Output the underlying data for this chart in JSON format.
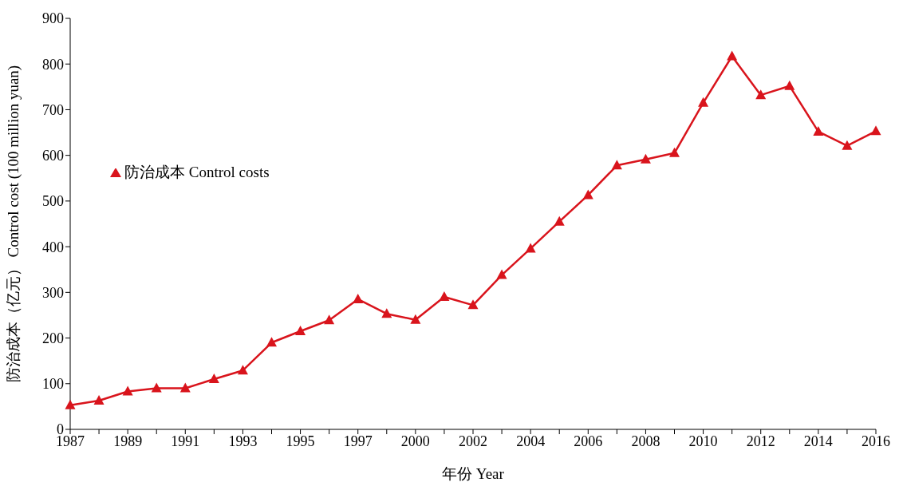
{
  "chart_data": {
    "type": "line",
    "xlabel": "年份 Year",
    "ylabel": "防治成本（亿元） Control cost (100 million yuan)",
    "categories": [
      "1987",
      null,
      "1989",
      null,
      "1991",
      null,
      "1993",
      null,
      "1995",
      null,
      "1997",
      null,
      "2000",
      null,
      "2002",
      null,
      "2004",
      null,
      "2006",
      null,
      "2008",
      null,
      "2010",
      null,
      "2012",
      null,
      "2014",
      null,
      "2016"
    ],
    "series": [
      {
        "name": "防治成本 Control costs",
        "color": "#d9141c",
        "values": [
          53,
          63,
          83,
          90,
          90,
          110,
          129,
          190,
          215,
          239,
          285,
          253,
          240,
          290,
          272,
          338,
          396,
          455,
          513,
          578,
          591,
          605,
          715,
          817,
          732,
          752,
          652,
          621,
          653
        ]
      }
    ],
    "ylim": [
      0,
      900
    ],
    "yticks": [
      0,
      100,
      200,
      300,
      400,
      500,
      600,
      700,
      800,
      900
    ],
    "grid": false,
    "legend": "top left",
    "marker": "triangle",
    "line_style": "solid"
  }
}
